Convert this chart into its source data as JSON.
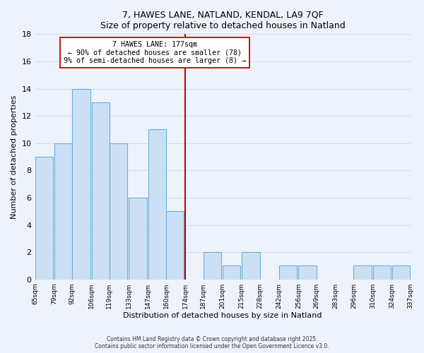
{
  "title": "7, HAWES LANE, NATLAND, KENDAL, LA9 7QF",
  "subtitle": "Size of property relative to detached houses in Natland",
  "xlabel": "Distribution of detached houses by size in Natland",
  "ylabel": "Number of detached properties",
  "bar_color": "#cce0f5",
  "bar_edge_color": "#6aaed6",
  "background_color": "#eef3fb",
  "grid_color": "#d0ddf0",
  "bins_left": [
    65,
    79,
    92,
    106,
    119,
    133,
    147,
    160,
    174,
    187,
    201,
    215,
    228,
    242,
    256,
    269,
    283,
    296,
    310,
    324
  ],
  "bin_width": 13,
  "counts": [
    9,
    10,
    14,
    13,
    10,
    6,
    11,
    5,
    0,
    2,
    1,
    2,
    0,
    1,
    1,
    0,
    0,
    1,
    1,
    1
  ],
  "vline_x": 174,
  "vline_color": "#cc0000",
  "annotation_line1": "7 HAWES LANE: 177sqm",
  "annotation_line2": "← 90% of detached houses are smaller (78)",
  "annotation_line3": "9% of semi-detached houses are larger (8) →",
  "annotation_box_color": "#ffffff",
  "annotation_box_edge": "#cc0000",
  "ylim": [
    0,
    18
  ],
  "yticks": [
    0,
    2,
    4,
    6,
    8,
    10,
    12,
    14,
    16,
    18
  ],
  "xtick_labels": [
    "65sqm",
    "79sqm",
    "92sqm",
    "106sqm",
    "119sqm",
    "133sqm",
    "147sqm",
    "160sqm",
    "174sqm",
    "187sqm",
    "201sqm",
    "215sqm",
    "228sqm",
    "242sqm",
    "256sqm",
    "269sqm",
    "283sqm",
    "296sqm",
    "310sqm",
    "324sqm",
    "337sqm"
  ],
  "footer_line1": "Contains HM Land Registry data © Crown copyright and database right 2025.",
  "footer_line2": "Contains public sector information licensed under the Open Government Licence v3.0."
}
